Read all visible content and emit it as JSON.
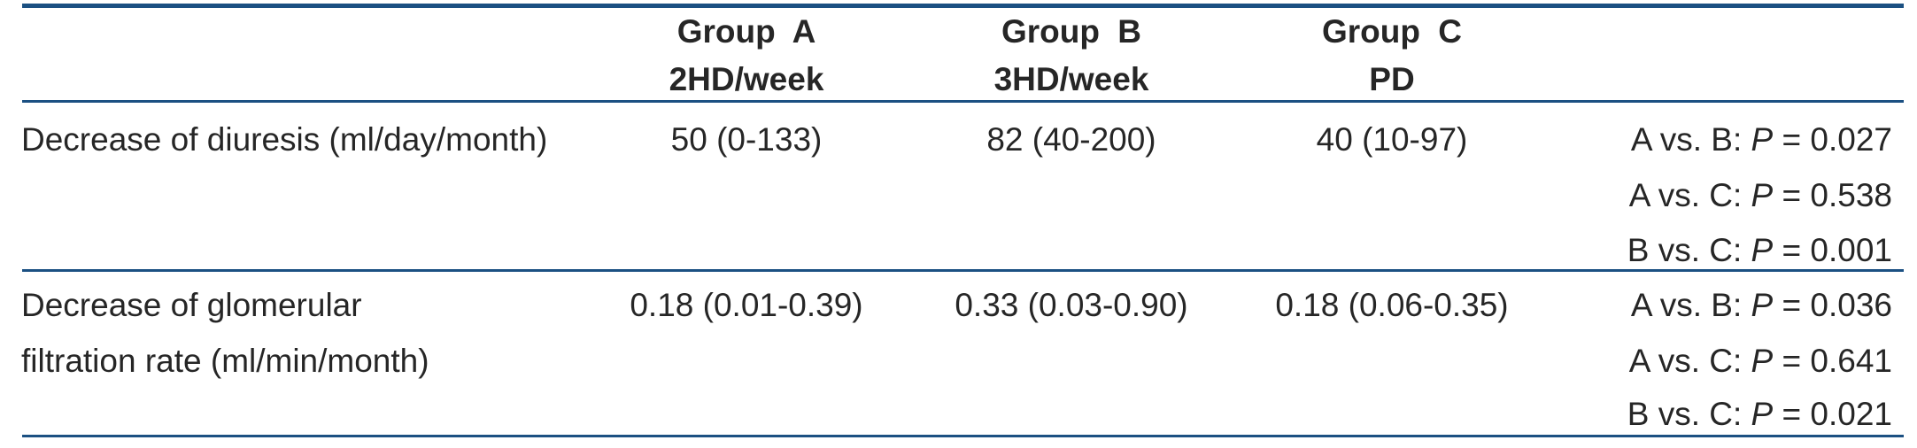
{
  "colors": {
    "rule_blue": "#1b5082",
    "text": "#262626",
    "background": "#ffffff"
  },
  "header": {
    "group_a": {
      "title": "Group A",
      "subtitle": "2HD/week"
    },
    "group_b": {
      "title": "Group B",
      "subtitle": "3HD/week"
    },
    "group_c": {
      "title": "Group C",
      "subtitle": "PD"
    }
  },
  "rows": [
    {
      "label_line1": "Decrease of diuresis (ml/day/month)",
      "label_line2": "",
      "group_a": "50 (0-133)",
      "group_b": "82 (40-200)",
      "group_c": "40 (10-97)",
      "p_values": [
        {
          "prefix": "A vs. B: ",
          "symbol": "P",
          "value": " = 0.027"
        },
        {
          "prefix": "A vs. C: ",
          "symbol": "P",
          "value": " = 0.538"
        },
        {
          "prefix": "B vs. C: ",
          "symbol": "P",
          "value": " = 0.001"
        }
      ]
    },
    {
      "label_line1": "Decrease of glomerular",
      "label_line2": "filtration rate (ml/min/month)",
      "group_a": "0.18 (0.01-0.39)",
      "group_b": "0.33 (0.03-0.90)",
      "group_c": "0.18 (0.06-0.35)",
      "p_values": [
        {
          "prefix": "A vs. B: ",
          "symbol": "P",
          "value": " = 0.036"
        },
        {
          "prefix": "A vs. C: ",
          "symbol": "P",
          "value": " = 0.641"
        },
        {
          "prefix": "B vs. C: ",
          "symbol": "P",
          "value": " = 0.021"
        }
      ]
    }
  ]
}
